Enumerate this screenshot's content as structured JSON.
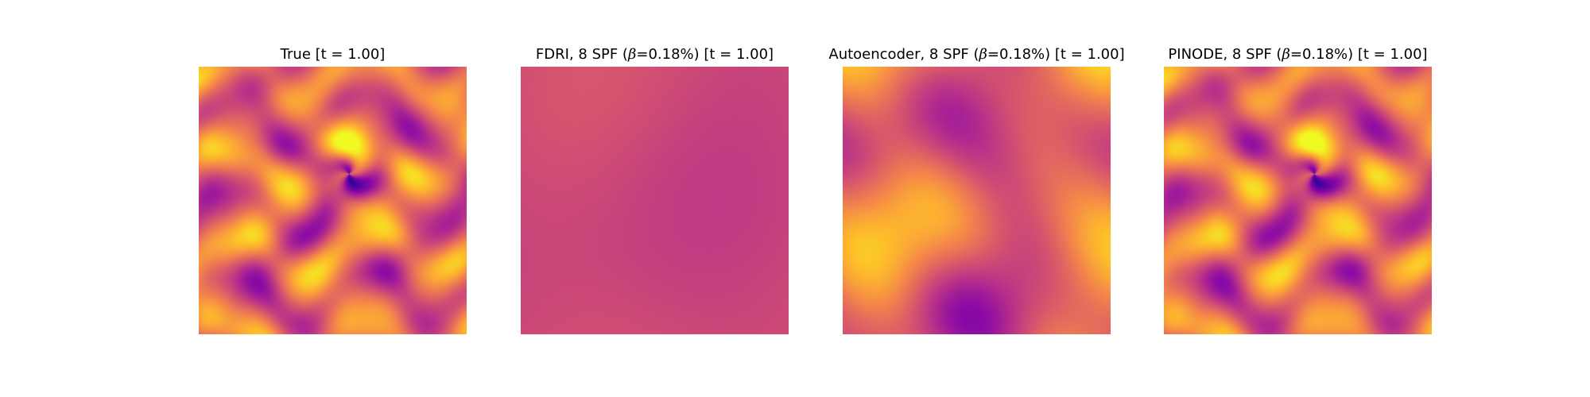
{
  "figure": {
    "panels": [
      {
        "title_pre": "True [t = 1.00]",
        "title_beta": "",
        "title_post": "",
        "colormap": "plasma",
        "style": "sharp"
      },
      {
        "title_pre": "FDRI, 8 SPF (",
        "title_beta": "β",
        "title_post": "=0.18%) [t = 1.00]",
        "colormap": "plasma",
        "style": "washed"
      },
      {
        "title_pre": "Autoencoder, 8 SPF (",
        "title_beta": "β",
        "title_post": "=0.18%) [t = 1.00]",
        "colormap": "plasma",
        "style": "blurred"
      },
      {
        "title_pre": "PINODE, 8 SPF (",
        "title_beta": "β",
        "title_post": "=0.18%) [t = 1.00]",
        "colormap": "plasma",
        "style": "sharp"
      }
    ]
  }
}
